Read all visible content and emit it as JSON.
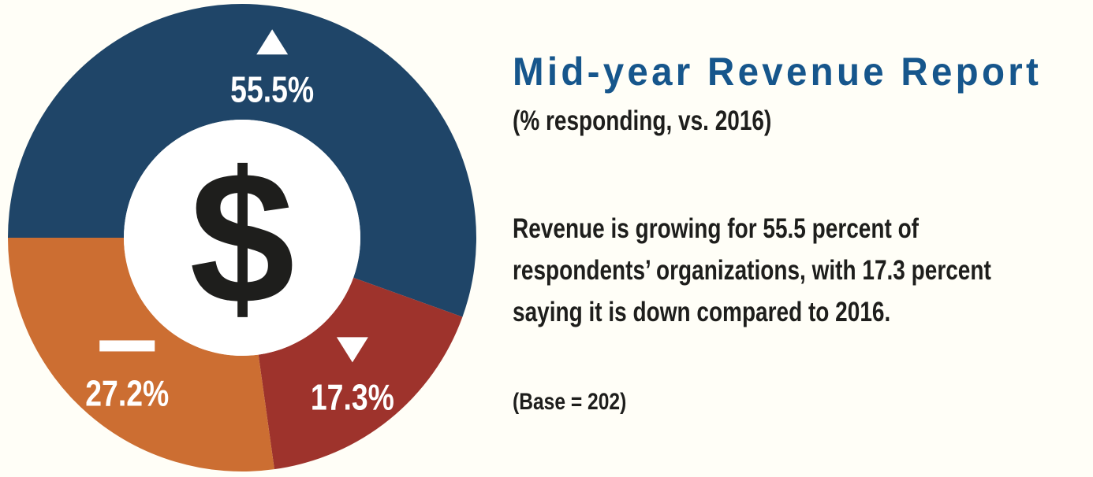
{
  "page": {
    "background": "#FFFEF7"
  },
  "chart_data": {
    "type": "pie",
    "variant": "donut",
    "title": "Mid-year Revenue Report",
    "subtitle": "(% responding, vs. 2016)",
    "base_note": "(Base = 202)",
    "center_symbol": "$",
    "center_symbol_color": "#1E1E1C",
    "hole_color": "#FFFFFF",
    "label_color": "#FFFFFF",
    "start_angle_deg": 270,
    "direction": "clockwise",
    "segments": [
      {
        "name": "revenue-up",
        "trend": "up",
        "value": 55.5,
        "display": "55.5%",
        "color": "#1F4568"
      },
      {
        "name": "revenue-down",
        "trend": "down",
        "value": 17.3,
        "display": "17.3%",
        "color": "#9E332C"
      },
      {
        "name": "revenue-flat",
        "trend": "flat",
        "value": 27.2,
        "display": "27.2%",
        "color": "#CC6E32"
      }
    ]
  },
  "panel": {
    "title": "Mid-year Revenue Report",
    "title_color": "#16568C",
    "text_color": "#1E1E1C",
    "subtitle": "(% responding, vs. 2016)",
    "body_lines": [
      "Revenue is growing for 55.5 percent of",
      "respondents’ organizations, with 17.3 percent",
      "saying it is down compared to 2016."
    ],
    "base": "(Base = 202)"
  }
}
